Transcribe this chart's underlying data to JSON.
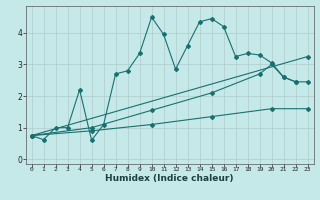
{
  "xlabel": "Humidex (Indice chaleur)",
  "bg_color": "#c5e8e8",
  "grid_color": "#b0cccc",
  "line_color": "#1a7070",
  "xlim": [
    -0.5,
    23.5
  ],
  "ylim": [
    -0.15,
    4.85
  ],
  "xticks": [
    0,
    1,
    2,
    3,
    4,
    5,
    6,
    7,
    8,
    9,
    10,
    11,
    12,
    13,
    14,
    15,
    16,
    17,
    18,
    19,
    20,
    21,
    22,
    23
  ],
  "yticks": [
    0,
    1,
    2,
    3,
    4
  ],
  "line1_x": [
    0,
    1,
    2,
    3,
    4,
    5,
    6,
    7,
    8,
    9,
    10,
    11,
    12,
    13,
    14,
    15,
    16,
    17,
    18,
    19,
    20,
    21,
    22
  ],
  "line1_y": [
    0.75,
    0.62,
    1.0,
    1.0,
    2.2,
    0.6,
    1.1,
    2.7,
    2.8,
    3.35,
    4.5,
    3.95,
    2.85,
    3.6,
    4.35,
    4.45,
    4.2,
    3.25,
    3.35,
    3.3,
    3.05,
    2.6,
    2.45
  ],
  "line2_x": [
    0,
    5,
    10,
    15,
    19,
    20,
    21,
    22,
    23
  ],
  "line2_y": [
    0.75,
    1.0,
    1.55,
    2.1,
    2.7,
    3.0,
    2.6,
    2.45,
    2.45
  ],
  "line3_x": [
    0,
    5,
    10,
    15,
    20,
    23
  ],
  "line3_y": [
    0.75,
    0.9,
    1.1,
    1.35,
    1.6,
    1.6
  ],
  "line4_x": [
    0,
    23
  ],
  "line4_y": [
    0.75,
    3.25
  ],
  "marker": "D",
  "markersize": 2.0,
  "linewidth": 0.8
}
